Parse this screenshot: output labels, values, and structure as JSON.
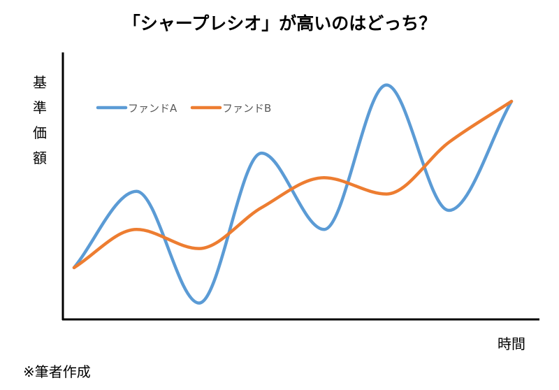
{
  "chart_data": {
    "type": "line",
    "title": "「シャープレシオ」が高いのはどっち？",
    "xlabel": "時間",
    "ylabel": "基準価額",
    "legend": "top-left",
    "grid": false,
    "x": [
      0,
      1,
      2,
      3,
      4,
      5,
      6,
      7
    ],
    "ylim": [
      0,
      10
    ],
    "series": [
      {
        "name": "ファンドA",
        "color": "#5B9BD5",
        "values": [
          1.9,
          4.7,
          0.6,
          6.1,
          3.3,
          8.6,
          4.0,
          8.0
        ]
      },
      {
        "name": "ファンドB",
        "color": "#ED7D31",
        "values": [
          1.9,
          3.3,
          2.6,
          4.1,
          5.2,
          4.6,
          6.5,
          8.0
        ]
      }
    ]
  },
  "footnote": "※筆者作成"
}
